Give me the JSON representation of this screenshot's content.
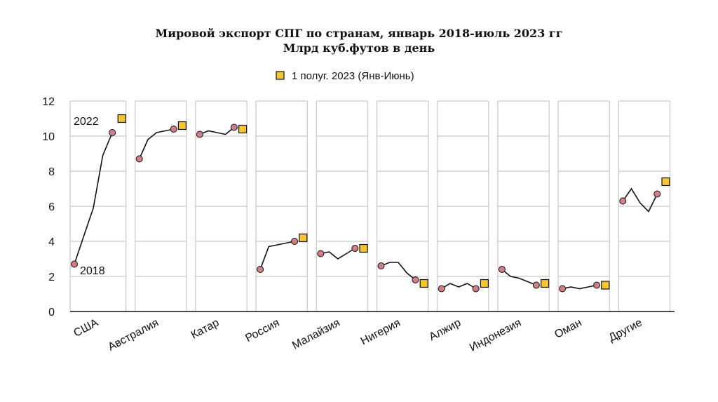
{
  "chart_data": {
    "type": "line",
    "title": "Мировой экспорт СПГ по странам, январь 2018-июль 2023 гг",
    "subtitle": "Млрд куб.футов в день",
    "legend": {
      "label": "1 полуг. 2023 (Янв-Июнь)",
      "placement": "top-center"
    },
    "annotations": [
      "2022",
      "2018"
    ],
    "yticks": [
      "0",
      "2",
      "4",
      "6",
      "8",
      "10",
      "12"
    ],
    "ylim": [
      0,
      12
    ],
    "grid": true,
    "x": [
      "2018",
      "2019",
      "2020",
      "2021",
      "2022"
    ],
    "colors": {
      "line": "#111111",
      "marker": "#d07f86",
      "highlight": "#f4c431",
      "grid": "#c8c8c8"
    },
    "series": [
      {
        "name": "США",
        "values": [
          2.7,
          4.3,
          5.9,
          8.9,
          10.2
        ],
        "h1_2023": 11.0
      },
      {
        "name": "Австралия",
        "values": [
          8.7,
          9.8,
          10.2,
          10.3,
          10.4
        ],
        "h1_2023": 10.6
      },
      {
        "name": "Катар",
        "values": [
          10.1,
          10.3,
          10.2,
          10.1,
          10.5
        ],
        "h1_2023": 10.4
      },
      {
        "name": "Россия",
        "values": [
          2.4,
          3.7,
          3.8,
          3.9,
          4.0
        ],
        "h1_2023": 4.2
      },
      {
        "name": "Малайзия",
        "values": [
          3.3,
          3.4,
          3.0,
          3.3,
          3.6
        ],
        "h1_2023": 3.6
      },
      {
        "name": "Нигерия",
        "values": [
          2.6,
          2.8,
          2.8,
          2.2,
          1.8
        ],
        "h1_2023": 1.6
      },
      {
        "name": "Алжир",
        "values": [
          1.3,
          1.6,
          1.4,
          1.6,
          1.3
        ],
        "h1_2023": 1.6
      },
      {
        "name": "Индонезия",
        "values": [
          2.4,
          2.0,
          1.9,
          1.7,
          1.5
        ],
        "h1_2023": 1.6
      },
      {
        "name": "Оман",
        "values": [
          1.3,
          1.4,
          1.3,
          1.4,
          1.5
        ],
        "h1_2023": 1.5
      },
      {
        "name": "Другие",
        "values": [
          6.3,
          7.0,
          6.2,
          5.7,
          6.7
        ],
        "h1_2023": 7.4
      }
    ]
  }
}
